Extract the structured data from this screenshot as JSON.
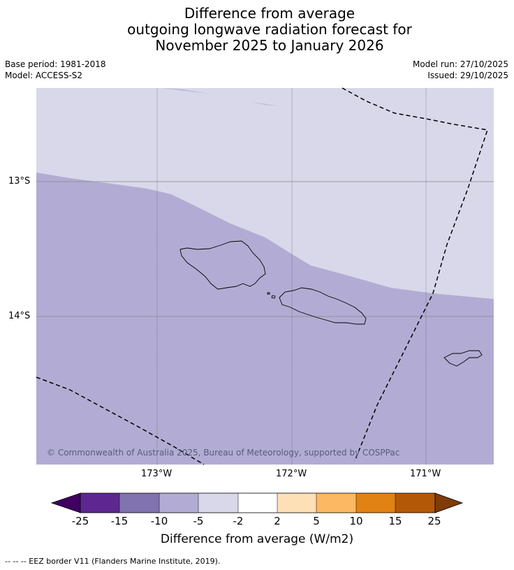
{
  "title": {
    "line1": "Difference from average",
    "line2": "outgoing longwave radiation forecast for",
    "line3": "November 2025 to January 2026"
  },
  "meta": {
    "base_period": "Base period: 1981-2018",
    "model": "Model: ACCESS-S2",
    "model_run": "Model run: 27/10/2025",
    "issued": "Issued: 29/10/2025"
  },
  "map": {
    "lat_labels": [
      "13°S",
      "14°S"
    ],
    "lon_labels": [
      "173°W",
      "172°W",
      "171°W"
    ],
    "copyright": "© Commonwealth of Australia 2025, Bureau of Meteorology, supported by COSPPac",
    "colors": {
      "light_category": "#d8d8ea",
      "mid_category": "#b2acd4"
    }
  },
  "colorbar": {
    "title": "Difference from average (W/m2)",
    "tick_labels": [
      "-25",
      "-15",
      "-10",
      "-5",
      "-2",
      "2",
      "5",
      "10",
      "15",
      "25"
    ],
    "colors": [
      "#3f0060",
      "#5e2790",
      "#8172b0",
      "#b2acd4",
      "#d8d8ea",
      "#ffffff",
      "#fee0b6",
      "#fdb863",
      "#e08214",
      "#b35806",
      "#7f3b08"
    ]
  },
  "footnote": "--  --  -- EEZ border V11 (Flanders Marine Institute, 2019)."
}
